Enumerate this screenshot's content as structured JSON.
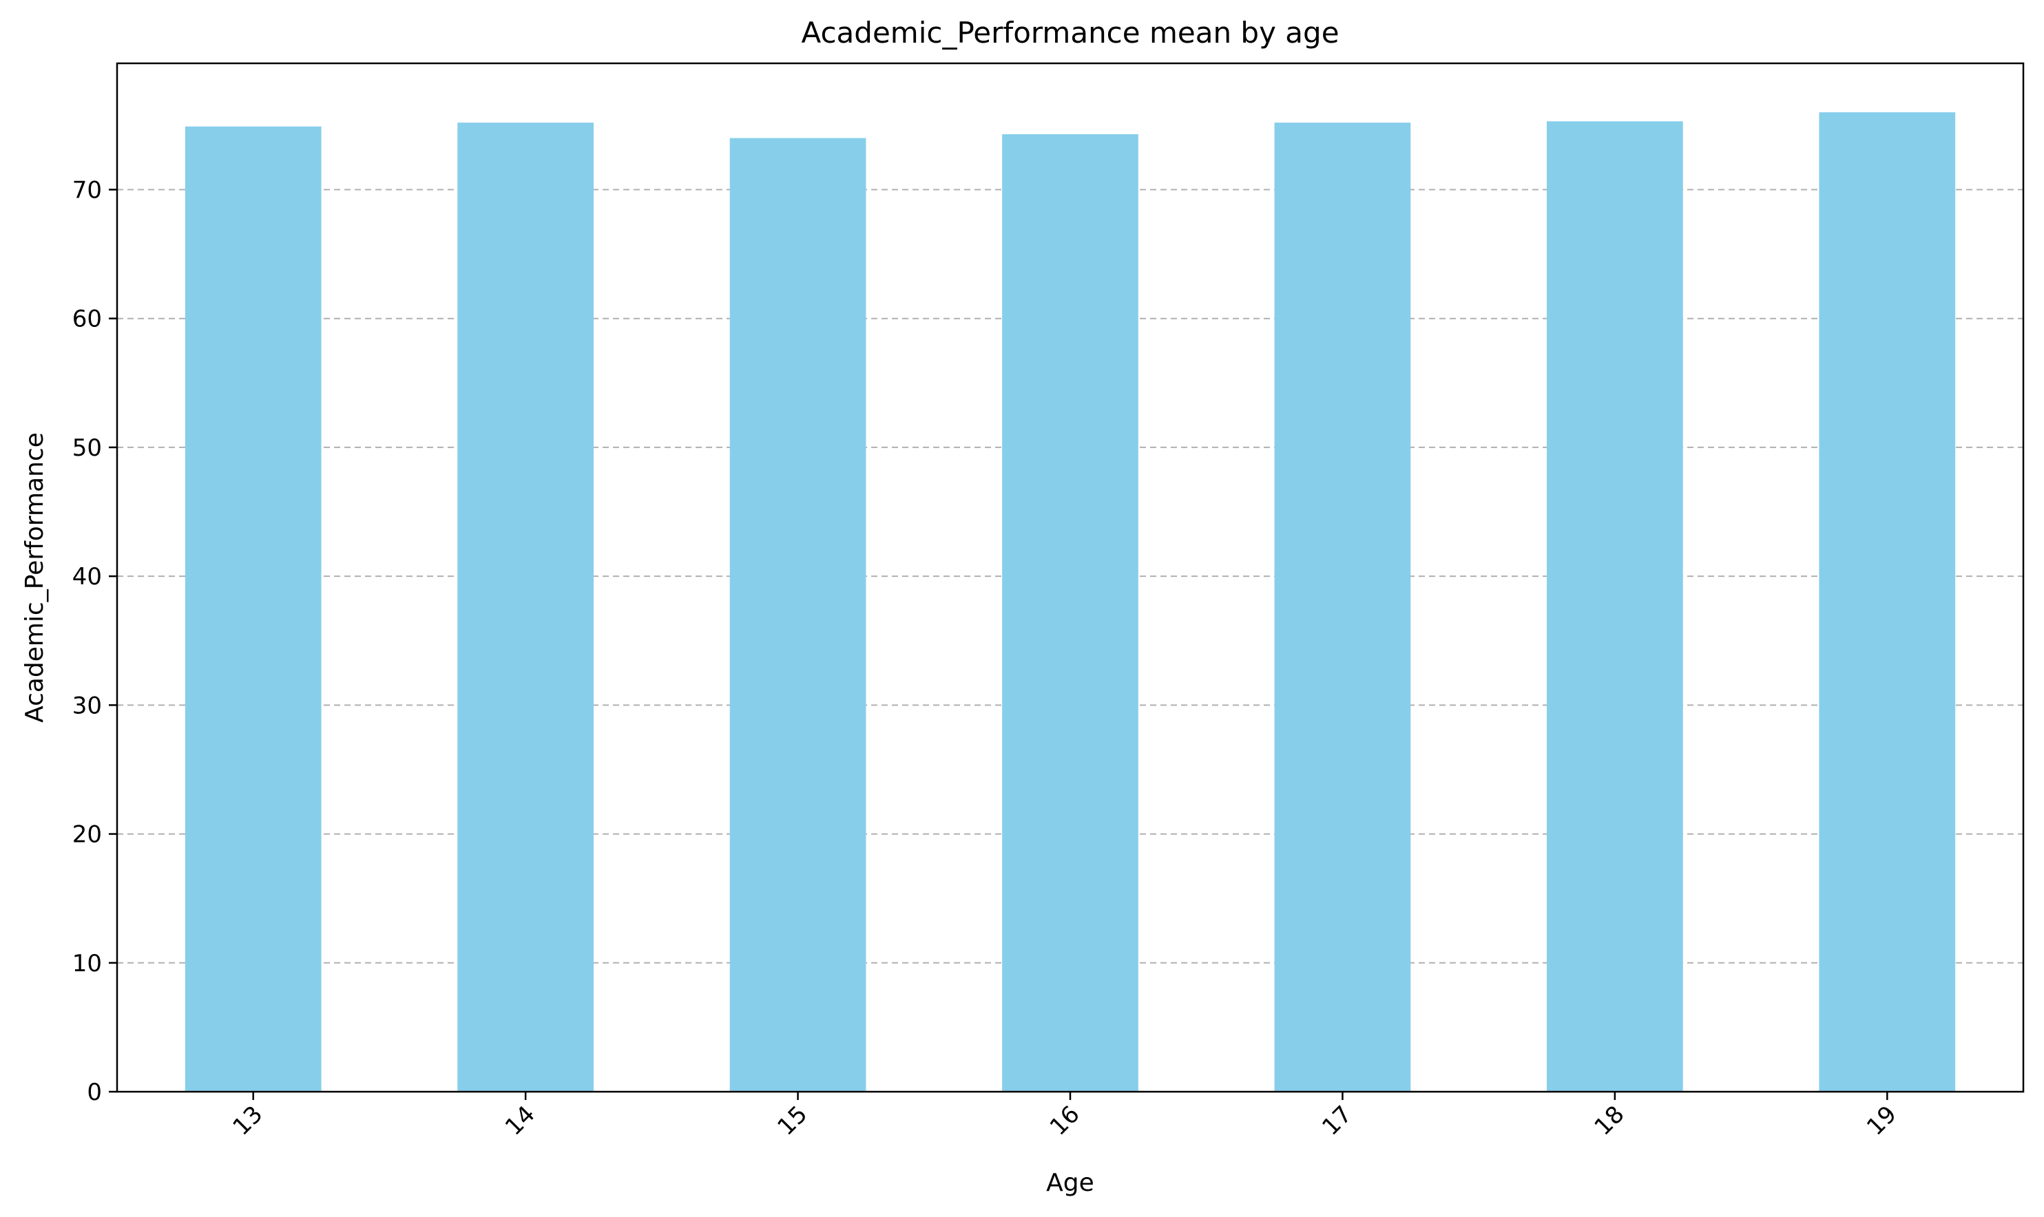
{
  "chart_data": {
    "type": "bar",
    "title": "Academic_Performance mean by age",
    "xlabel": "Age",
    "ylabel": "Academic_Performance",
    "categories": [
      "13",
      "14",
      "15",
      "16",
      "17",
      "18",
      "19"
    ],
    "values": [
      74.9,
      75.2,
      74.0,
      74.3,
      75.2,
      75.3,
      76.0
    ],
    "ylim": [
      0,
      79.8
    ],
    "yticks": [
      0,
      10,
      20,
      30,
      40,
      50,
      60,
      70
    ],
    "grid": "y-axis dashed",
    "xtick_rotation": "45 degrees",
    "bar_color": "#87ceeb"
  }
}
